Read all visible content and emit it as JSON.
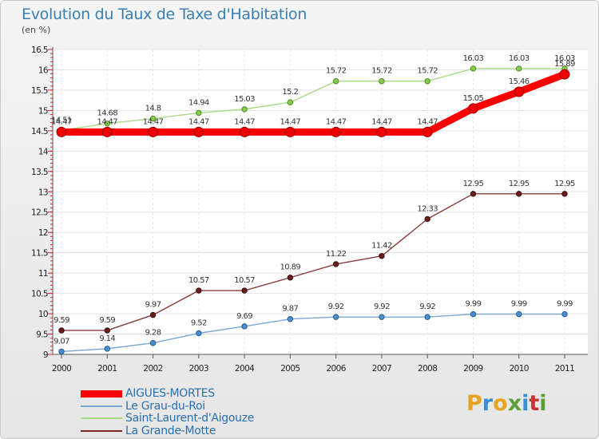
{
  "header": {
    "title": "Evolution du Taux de Taxe d'Habitation",
    "unit": "(en %)"
  },
  "logo": {
    "letters": [
      "P",
      "r",
      "o",
      "x",
      "i",
      "t",
      "i"
    ],
    "colors": [
      "#e8a323",
      "#3a8fd0",
      "#e8a323",
      "#5aa03a",
      "#3a8fd0",
      "#cc3333",
      "#5aa03a"
    ]
  },
  "chart_data": {
    "type": "line",
    "title": "Evolution du Taux de Taxe d'Habitation",
    "ylabel": "(en %)",
    "xlabel": "",
    "x": [
      "2000",
      "2001",
      "2002",
      "2003",
      "2004",
      "2005",
      "2006",
      "2007",
      "2008",
      "2009",
      "2010",
      "2011"
    ],
    "yticks": [
      "9",
      "9.5",
      "10",
      "10.5",
      "11",
      "11.5",
      "12",
      "12.5",
      "13",
      "13.5",
      "14",
      "14.5",
      "15",
      "15.5",
      "16",
      "16.5"
    ],
    "ylim": [
      9,
      16.5
    ],
    "grid": true,
    "legend_position": "bottom-left",
    "series": [
      {
        "name": "AIGUES-MORTES",
        "color": "#ff0000",
        "values": [
          14.47,
          14.47,
          14.47,
          14.47,
          14.47,
          14.47,
          14.47,
          14.47,
          14.47,
          15.05,
          15.46,
          15.89
        ],
        "labels": [
          "14.47",
          "14.47",
          "14.47",
          "14.47",
          "14.47",
          "14.47",
          "14.47",
          "14.47",
          "14.47",
          "15.05",
          "15.46",
          "15.89"
        ]
      },
      {
        "name": "Le Grau-du-Roi",
        "color": "#7aa7d4",
        "values": [
          9.07,
          9.14,
          9.28,
          9.52,
          9.69,
          9.87,
          9.92,
          9.92,
          9.92,
          9.99,
          9.99,
          9.99
        ],
        "labels": [
          "9.07",
          "9.14",
          "9.28",
          "9.52",
          "9.69",
          "9.87",
          "9.92",
          "9.92",
          "9.92",
          "9.99",
          "9.99",
          "9.99"
        ]
      },
      {
        "name": "Saint-Laurent-d'Aigouze",
        "color": "#a6dc84",
        "values": [
          14.51,
          14.68,
          14.8,
          14.94,
          15.03,
          15.2,
          15.72,
          15.72,
          15.72,
          16.03,
          16.03,
          16.03
        ],
        "labels": [
          "14.51",
          "14.68",
          "14.8",
          "14.94",
          "15.03",
          "15.2",
          "15.72",
          "15.72",
          "15.72",
          "16.03",
          "16.03",
          "16.03"
        ]
      },
      {
        "name": "La Grande-Motte",
        "color": "#7a2a2a",
        "values": [
          9.59,
          9.59,
          9.97,
          10.57,
          10.57,
          10.89,
          11.22,
          11.42,
          12.33,
          12.95,
          12.95,
          12.95
        ],
        "labels": [
          "9.59",
          "9.59",
          "9.97",
          "10.57",
          "10.57",
          "10.89",
          "11.22",
          "11.42",
          "12.33",
          "12.95",
          "12.95",
          "12.95"
        ]
      }
    ]
  }
}
